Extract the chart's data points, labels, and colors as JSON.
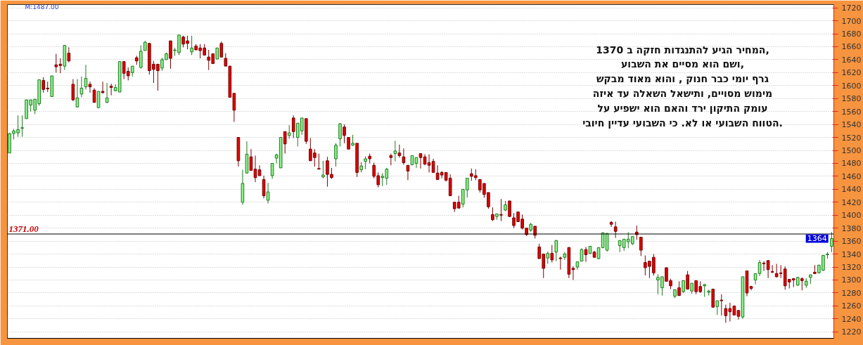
{
  "chart_data": {
    "type": "candlestick",
    "categories": [
      null,
      null,
      null,
      null,
      null,
      null,
      null,
      null,
      null,
      null,
      null,
      null,
      null,
      null,
      null,
      null,
      null,
      null,
      null,
      null,
      null,
      null,
      null,
      null,
      null,
      null,
      null,
      null,
      null,
      null,
      null,
      null,
      null,
      null,
      null,
      null,
      null,
      null,
      null,
      null,
      null,
      null,
      null,
      null,
      null,
      null,
      null,
      null,
      null,
      null,
      null,
      null,
      null,
      null,
      null,
      null,
      null,
      null,
      null,
      null,
      null,
      null,
      null,
      null,
      null,
      null,
      null,
      null,
      null,
      null,
      null,
      null,
      null,
      null,
      null,
      null,
      null,
      null,
      null,
      null,
      null,
      null,
      null,
      null,
      null,
      null,
      null,
      null,
      null,
      null,
      null,
      null,
      null,
      null,
      null,
      null,
      null,
      null,
      null,
      null,
      null,
      null,
      null,
      null,
      null,
      null,
      null,
      null,
      null,
      null,
      null,
      null,
      null,
      null,
      null,
      null,
      null,
      null,
      null,
      null,
      null,
      null,
      null,
      null,
      null,
      null,
      null,
      null,
      null,
      null,
      null,
      null,
      null,
      null,
      null,
      null,
      null,
      null,
      null,
      null,
      null,
      null,
      null,
      null,
      null,
      null,
      null,
      null,
      null,
      null,
      null,
      null,
      null,
      null,
      null,
      null,
      null,
      null,
      null,
      null,
      null,
      null,
      null,
      null,
      null,
      null,
      null,
      null,
      null,
      null,
      null,
      null,
      null,
      null,
      null,
      null,
      null,
      null,
      null,
      null,
      null,
      null,
      null,
      null,
      null,
      null,
      null,
      null,
      null,
      null,
      null,
      null,
      null,
      null,
      null
    ],
    "ohlc": [
      [
        1496,
        1527,
        1496,
        1526
      ],
      [
        1526,
        1533,
        1517,
        1530
      ],
      [
        1527,
        1554,
        1521,
        1532
      ],
      [
        1534,
        1554,
        1521,
        1535
      ],
      [
        1549,
        1578,
        1549,
        1578
      ],
      [
        1570,
        1578,
        1560,
        1578
      ],
      [
        1562,
        1579,
        1556,
        1579
      ],
      [
        1572,
        1609,
        1569,
        1609
      ],
      [
        1608,
        1613,
        1589,
        1594
      ],
      [
        1596,
        1606,
        1590,
        1595
      ],
      [
        1583,
        1615,
        1583,
        1615
      ],
      [
        1632,
        1649,
        1620,
        1629
      ],
      [
        1633,
        1642,
        1619,
        1631
      ],
      [
        1630,
        1662,
        1624,
        1662
      ],
      [
        1650,
        1659,
        1636,
        1638
      ],
      [
        1602,
        1610,
        1576,
        1578
      ],
      [
        1567,
        1610,
        1567,
        1581
      ],
      [
        1587,
        1614,
        1582,
        1596
      ],
      [
        1598,
        1632,
        1594,
        1611
      ],
      [
        1602,
        1606,
        1589,
        1598
      ],
      [
        1593,
        1596,
        1574,
        1574
      ],
      [
        1566,
        1591,
        1565,
        1591
      ],
      [
        1591,
        1606,
        1588,
        1589
      ],
      [
        1574,
        1604,
        1573,
        1581
      ],
      [
        1599,
        1603,
        1585,
        1597
      ],
      [
        1592,
        1602,
        1591,
        1597
      ],
      [
        1590,
        1637,
        1590,
        1637
      ],
      [
        1637,
        1637,
        1610,
        1619
      ],
      [
        1622,
        1628,
        1608,
        1615
      ],
      [
        1620,
        1630,
        1614,
        1630
      ],
      [
        1643,
        1646,
        1632,
        1638
      ],
      [
        1628,
        1662,
        1626,
        1653
      ],
      [
        1654,
        1669,
        1654,
        1667
      ],
      [
        1665,
        1666,
        1617,
        1623
      ],
      [
        1633,
        1638,
        1604,
        1625
      ],
      [
        1633,
        1633,
        1592,
        1623
      ],
      [
        1627,
        1643,
        1623,
        1640
      ],
      [
        1640,
        1651,
        1640,
        1649
      ],
      [
        1669,
        1669,
        1626,
        1642
      ],
      [
        1654,
        1658,
        1646,
        1655
      ],
      [
        1651,
        1678,
        1647,
        1678
      ],
      [
        1675,
        1677,
        1659,
        1664
      ],
      [
        1669,
        1677,
        1656,
        1665
      ],
      [
        1652,
        1677,
        1647,
        1658
      ],
      [
        1661,
        1664,
        1655,
        1655
      ],
      [
        1658,
        1664,
        1642,
        1654
      ],
      [
        1658,
        1664,
        1647,
        1647
      ],
      [
        1644,
        1655,
        1624,
        1639
      ],
      [
        1649,
        1649,
        1634,
        1634
      ],
      [
        1641,
        1658,
        1641,
        1658
      ],
      [
        1665,
        1668,
        1644,
        1644
      ],
      [
        1642,
        1650,
        1630,
        1630
      ],
      [
        1630,
        1630,
        1582,
        1582
      ],
      [
        1588,
        1588,
        1544,
        1562
      ],
      [
        1520,
        1520,
        1475,
        1484
      ],
      [
        1420,
        1470,
        1416,
        1449
      ],
      [
        1465,
        1514,
        1465,
        1494
      ],
      [
        1490,
        1502,
        1469,
        1469
      ],
      [
        1471,
        1492,
        1451,
        1458
      ],
      [
        1470,
        1477,
        1461,
        1461
      ],
      [
        1455,
        1461,
        1426,
        1430
      ],
      [
        1423,
        1450,
        1418,
        1436
      ],
      [
        1461,
        1480,
        1456,
        1480
      ],
      [
        1488,
        1495,
        1480,
        1493
      ],
      [
        1473,
        1520,
        1473,
        1520
      ],
      [
        1529,
        1529,
        1495,
        1510
      ],
      [
        1523,
        1539,
        1518,
        1527
      ],
      [
        1550,
        1554,
        1519,
        1529
      ],
      [
        1520,
        1542,
        1506,
        1542
      ],
      [
        1530,
        1550,
        1524,
        1550
      ],
      [
        1549,
        1549,
        1510,
        1514
      ],
      [
        1502,
        1519,
        1484,
        1484
      ],
      [
        1496,
        1502,
        1475,
        1489
      ],
      [
        1472,
        1495,
        1471,
        1471
      ],
      [
        1459,
        1484,
        1457,
        1462
      ],
      [
        1484,
        1490,
        1444,
        1463
      ],
      [
        1463,
        1473,
        1456,
        1458
      ],
      [
        1487,
        1511,
        1475,
        1508
      ],
      [
        1518,
        1542,
        1506,
        1541
      ],
      [
        1536,
        1540,
        1511,
        1523
      ],
      [
        1520,
        1520,
        1502,
        1502
      ],
      [
        1508,
        1524,
        1507,
        1511
      ],
      [
        1511,
        1511,
        1459,
        1466
      ],
      [
        1470,
        1482,
        1466,
        1476
      ],
      [
        1483,
        1491,
        1471,
        1487
      ],
      [
        1491,
        1495,
        1480,
        1487
      ],
      [
        1477,
        1481,
        1457,
        1460
      ],
      [
        1461,
        1466,
        1443,
        1447
      ],
      [
        1458,
        1465,
        1445,
        1460
      ],
      [
        1457,
        1473,
        1447,
        1471
      ],
      [
        1492,
        1495,
        1477,
        1489
      ],
      [
        1495,
        1515,
        1483,
        1499
      ],
      [
        1496,
        1509,
        1489,
        1492
      ],
      [
        1490,
        1503,
        1478,
        1481
      ],
      [
        1477,
        1477,
        1454,
        1468
      ],
      [
        1478,
        1492,
        1477,
        1492
      ],
      [
        1480,
        1489,
        1473,
        1489
      ],
      [
        1495,
        1495,
        1472,
        1489
      ],
      [
        1490,
        1494,
        1477,
        1479
      ],
      [
        1481,
        1494,
        1466,
        1477
      ],
      [
        1483,
        1487,
        1466,
        1466
      ],
      [
        1465,
        1477,
        1455,
        1455
      ],
      [
        1466,
        1468,
        1457,
        1462
      ],
      [
        1466,
        1466,
        1452,
        1454
      ],
      [
        1457,
        1463,
        1430,
        1430
      ],
      [
        1420,
        1420,
        1405,
        1410
      ],
      [
        1420,
        1430,
        1410,
        1411
      ],
      [
        1417,
        1440,
        1412,
        1440
      ],
      [
        1439,
        1457,
        1427,
        1457
      ],
      [
        1464,
        1472,
        1453,
        1460
      ],
      [
        1461,
        1471,
        1454,
        1458
      ],
      [
        1455,
        1455,
        1435,
        1439
      ],
      [
        1449,
        1449,
        1427,
        1432
      ],
      [
        1435,
        1435,
        1410,
        1413
      ],
      [
        1401,
        1412,
        1391,
        1393
      ],
      [
        1398,
        1402,
        1393,
        1402
      ],
      [
        1401,
        1425,
        1391,
        1400
      ],
      [
        1408,
        1422,
        1406,
        1416
      ],
      [
        1422,
        1422,
        1397,
        1398
      ],
      [
        1396,
        1403,
        1380,
        1384
      ],
      [
        1405,
        1405,
        1390,
        1390
      ],
      [
        1394,
        1401,
        1378,
        1380
      ],
      [
        1380,
        1380,
        1368,
        1370
      ],
      [
        1377,
        1388,
        1374,
        1386
      ],
      [
        1383,
        1383,
        1364,
        1369
      ],
      [
        1351,
        1356,
        1333,
        1333
      ],
      [
        1340,
        1340,
        1303,
        1318
      ],
      [
        1334,
        1344,
        1325,
        1341
      ],
      [
        1341,
        1354,
        1327,
        1331
      ],
      [
        1343,
        1361,
        1329,
        1361
      ],
      [
        1334,
        1336,
        1316,
        1333
      ],
      [
        1335,
        1343,
        1331,
        1340
      ],
      [
        1350,
        1351,
        1303,
        1309
      ],
      [
        1318,
        1321,
        1300,
        1316
      ],
      [
        1320,
        1328,
        1316,
        1328
      ],
      [
        1329,
        1349,
        1329,
        1347
      ],
      [
        1347,
        1351,
        1328,
        1339
      ],
      [
        1341,
        1352,
        1340,
        1352
      ],
      [
        1343,
        1345,
        1335,
        1335
      ],
      [
        1333,
        1350,
        1332,
        1350
      ],
      [
        1350,
        1373,
        1349,
        1373
      ],
      [
        1346,
        1372,
        1344,
        1372
      ],
      [
        1389,
        1391,
        1382,
        1386
      ],
      [
        1382,
        1390,
        1365,
        1375
      ],
      [
        1353,
        1361,
        1343,
        1361
      ],
      [
        1350,
        1363,
        1345,
        1363
      ],
      [
        1359,
        1374,
        1349,
        1363
      ],
      [
        1356,
        1367,
        1354,
        1367
      ],
      [
        1374,
        1384,
        1362,
        1370
      ],
      [
        1366,
        1366,
        1337,
        1346
      ],
      [
        1327,
        1338,
        1307,
        1319
      ],
      [
        1329,
        1329,
        1303,
        1321
      ],
      [
        1335,
        1340,
        1307,
        1311
      ],
      [
        1300,
        1309,
        1278,
        1304
      ],
      [
        1288,
        1305,
        1276,
        1305
      ],
      [
        1319,
        1319,
        1298,
        1298
      ],
      [
        1299,
        1302,
        1286,
        1291
      ],
      [
        1275,
        1285,
        1272,
        1285
      ],
      [
        1288,
        1298,
        1276,
        1276
      ],
      [
        1282,
        1299,
        1280,
        1299
      ],
      [
        1308,
        1314,
        1286,
        1286
      ],
      [
        1283,
        1295,
        1279,
        1295
      ],
      [
        1299,
        1299,
        1278,
        1282
      ],
      [
        1290,
        1298,
        1280,
        1282
      ],
      [
        1291,
        1294,
        1274,
        1293
      ],
      [
        1281,
        1285,
        1276,
        1283
      ],
      [
        1286,
        1286,
        1258,
        1258
      ],
      [
        1259,
        1268,
        1246,
        1268
      ],
      [
        1269,
        1278,
        1245,
        1268
      ],
      [
        1256,
        1262,
        1234,
        1245
      ],
      [
        1256,
        1265,
        1236,
        1251
      ],
      [
        1260,
        1260,
        1246,
        1246
      ],
      [
        1253,
        1253,
        1239,
        1244
      ],
      [
        1243,
        1305,
        1240,
        1305
      ],
      [
        1314,
        1314,
        1275,
        1280
      ],
      [
        1290,
        1291,
        1284,
        1287
      ],
      [
        1300,
        1310,
        1293,
        1310
      ],
      [
        1310,
        1331,
        1306,
        1327
      ],
      [
        1326,
        1329,
        1314,
        1325
      ],
      [
        1330,
        1330,
        1303,
        1316
      ],
      [
        1313,
        1323,
        1311,
        1312
      ],
      [
        1310,
        1325,
        1304,
        1305
      ],
      [
        1311,
        1323,
        1303,
        1310
      ],
      [
        1317,
        1321,
        1285,
        1291
      ],
      [
        1301,
        1301,
        1287,
        1297
      ],
      [
        1302,
        1303,
        1289,
        1300
      ],
      [
        1292,
        1305,
        1291,
        1304
      ],
      [
        1302,
        1304,
        1284,
        1299
      ],
      [
        1292,
        1303,
        1288,
        1298
      ],
      [
        1304,
        1308,
        1294,
        1308
      ],
      [
        1312,
        1323,
        1309,
        1310
      ],
      [
        1311,
        1323,
        1310,
        1323
      ],
      [
        1315,
        1338,
        1314,
        1338
      ],
      [
        1339,
        1343,
        1333,
        1340
      ],
      [
        1352,
        1374,
        1343,
        1364
      ]
    ],
    "ylim": [
      1210,
      1725
    ],
    "yticks": [
      1220,
      1240,
      1260,
      1280,
      1300,
      1320,
      1340,
      1360,
      1380,
      1400,
      1420,
      1440,
      1460,
      1480,
      1500,
      1520,
      1540,
      1560,
      1580,
      1600,
      1620,
      1640,
      1660,
      1680,
      1700,
      1720
    ],
    "grid": "y",
    "tick_labels": "y",
    "ref_lines": [
      {
        "axis": "y",
        "value": 1371,
        "label": "1371.00",
        "color": "#000000"
      }
    ],
    "annotations": [
      "M:1487.00",
      "המחיר הגיע להתנגדות חזקה ב 1370,\nושם הוא מסיים את השבוע,\nגרף יומי כבר חנוק , והוא מאוד מבקש\nמימוש מסויים, ותישאל השאלה עד איזה\nעומק התיקון ירד והאם הוא ישפיע על\nהטווח השבועי או לא. כי השבועי עדיין חיובי.",
      {
        "text": "1364",
        "y": 1364
      }
    ]
  }
}
